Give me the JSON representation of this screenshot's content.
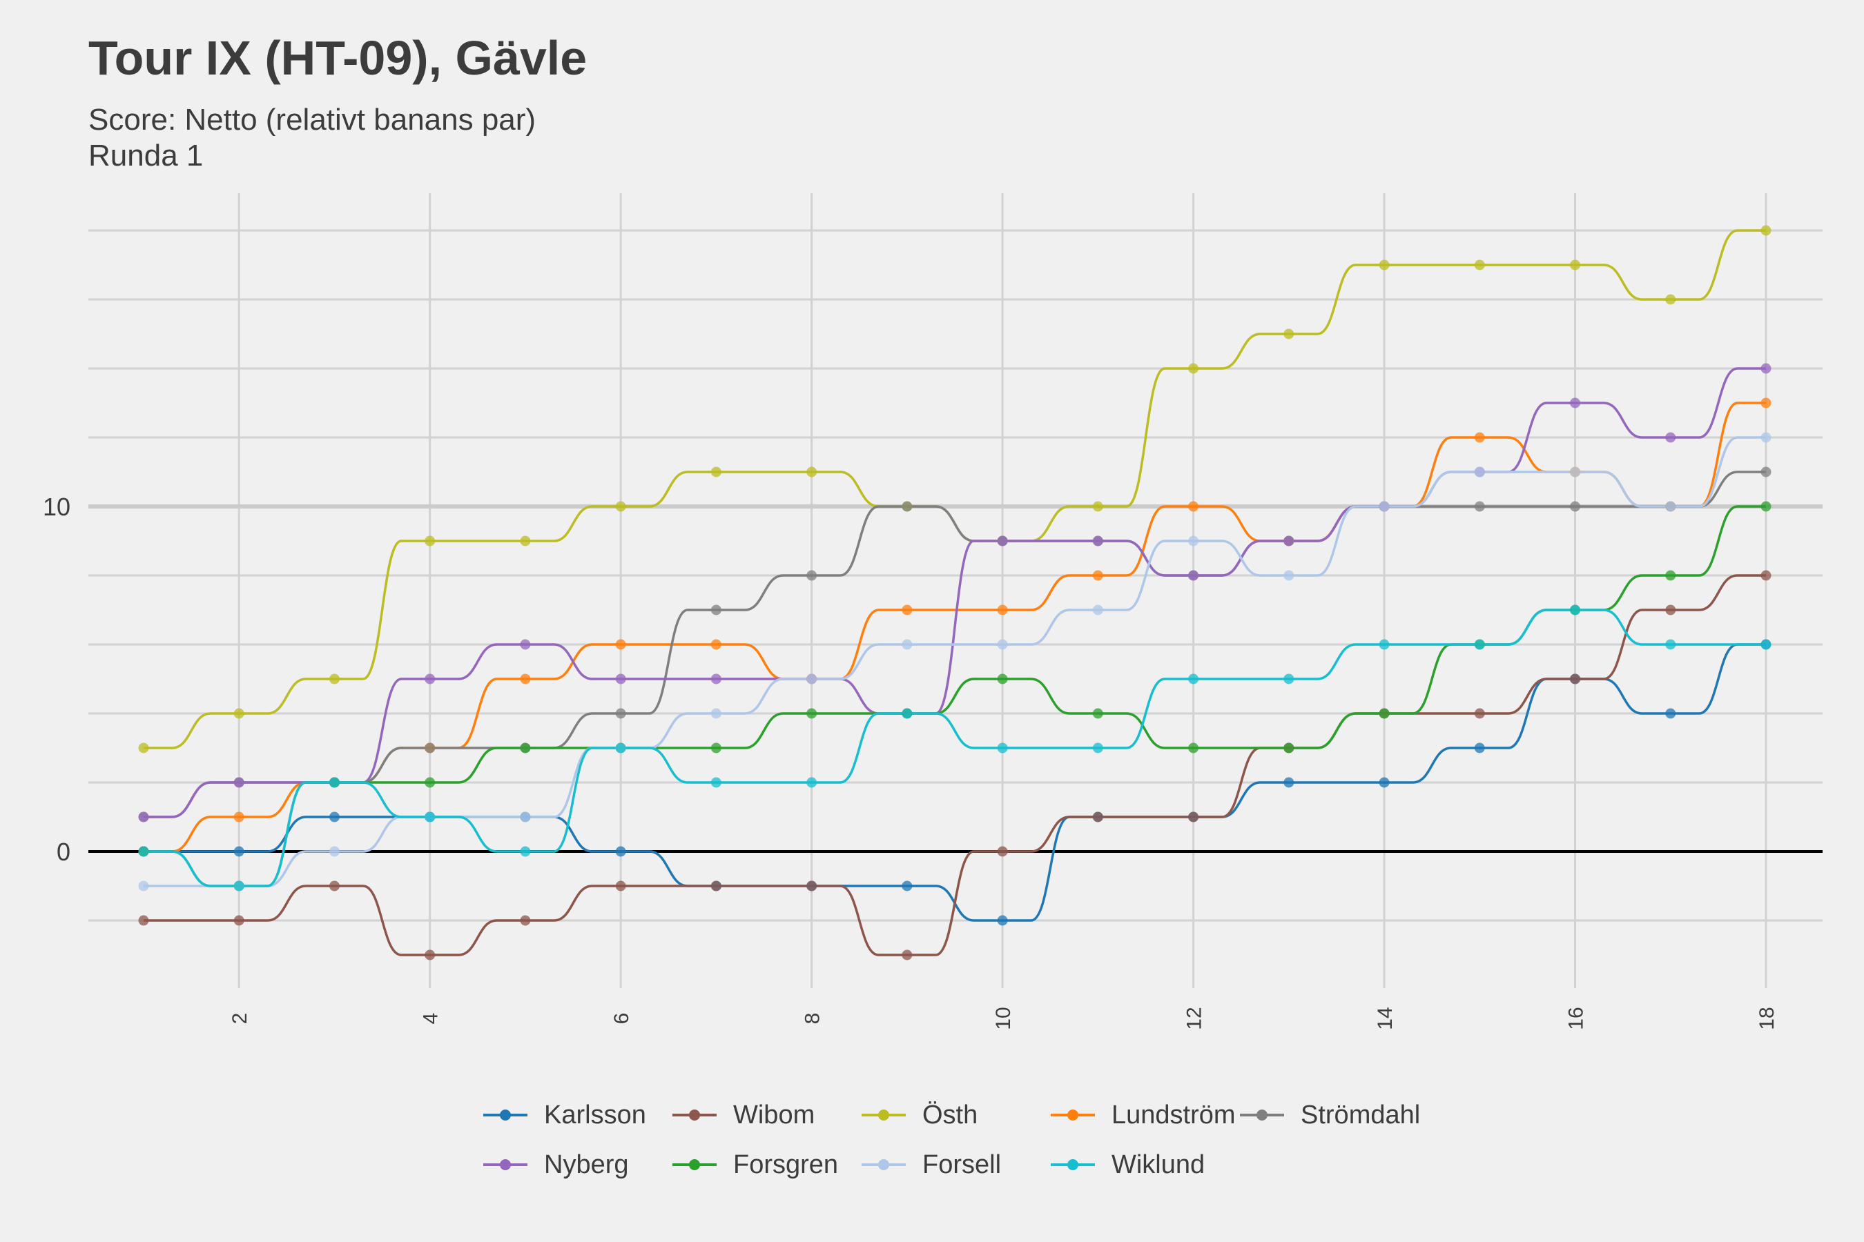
{
  "chart_data": {
    "type": "line",
    "title": "Tour IX (HT-09), Gävle",
    "subtitle": "Score: Netto (relativt banans par)\nRunda 1",
    "xlabel": "",
    "ylabel": "",
    "x": [
      1,
      2,
      3,
      4,
      5,
      6,
      7,
      8,
      9,
      10,
      11,
      12,
      13,
      14,
      15,
      16,
      17,
      18
    ],
    "xlim": [
      1,
      18
    ],
    "ylim": [
      -4,
      19
    ],
    "x_ticks": [
      "2",
      "4",
      "6",
      "8",
      "10",
      "12",
      "14",
      "16",
      "18"
    ],
    "y_ticks": [
      "0",
      "10"
    ],
    "grid": true,
    "legend_position": "bottom",
    "series": [
      {
        "name": "Karlsson",
        "color": "#1f77b4",
        "values": [
          0,
          0,
          1,
          1,
          1,
          0,
          -1,
          -1,
          -1,
          -2,
          1,
          1,
          2,
          2,
          3,
          5,
          4,
          6
        ]
      },
      {
        "name": "Wibom",
        "color": "#8c564b",
        "values": [
          -2,
          -2,
          -1,
          -3,
          -2,
          -1,
          -1,
          -1,
          -3,
          0,
          1,
          1,
          3,
          4,
          4,
          5,
          7,
          8
        ]
      },
      {
        "name": "Östh",
        "color": "#bcbd22",
        "values": [
          3,
          4,
          5,
          9,
          9,
          10,
          11,
          11,
          10,
          9,
          10,
          14,
          15,
          17,
          17,
          17,
          16,
          18
        ]
      },
      {
        "name": "Lundström",
        "color": "#ff7f0e",
        "values": [
          0,
          1,
          2,
          3,
          5,
          6,
          6,
          5,
          7,
          7,
          8,
          10,
          9,
          10,
          12,
          11,
          10,
          13
        ]
      },
      {
        "name": "Strömdahl",
        "color": "#7f7f7f",
        "values": [
          1,
          2,
          2,
          3,
          3,
          4,
          7,
          8,
          10,
          9,
          9,
          8,
          9,
          10,
          10,
          10,
          10,
          11
        ]
      },
      {
        "name": "Nyberg",
        "color": "#9467bd",
        "values": [
          1,
          2,
          2,
          5,
          6,
          5,
          5,
          5,
          4,
          9,
          9,
          8,
          9,
          10,
          11,
          13,
          12,
          14
        ]
      },
      {
        "name": "Forsgren",
        "color": "#2ca02c",
        "values": [
          0,
          -1,
          2,
          2,
          3,
          3,
          3,
          4,
          4,
          5,
          4,
          3,
          3,
          4,
          6,
          7,
          8,
          10
        ]
      },
      {
        "name": "Forsell",
        "color": "#aec7e8",
        "values": [
          -1,
          -1,
          0,
          1,
          1,
          3,
          4,
          5,
          6,
          6,
          7,
          9,
          8,
          10,
          11,
          11,
          10,
          12
        ]
      },
      {
        "name": "Wiklund",
        "color": "#17becf",
        "values": [
          0,
          -1,
          2,
          1,
          0,
          3,
          2,
          2,
          4,
          3,
          3,
          5,
          5,
          6,
          6,
          7,
          6,
          6
        ]
      }
    ]
  },
  "legend": {
    "rows": [
      [
        {
          "label": "Karlsson",
          "color": "#1f77b4"
        },
        {
          "label": "Wibom",
          "color": "#8c564b"
        },
        {
          "label": "Östh",
          "color": "#bcbd22"
        },
        {
          "label": "Lundström",
          "color": "#ff7f0e"
        },
        {
          "label": "Strömdahl",
          "color": "#7f7f7f"
        }
      ],
      [
        {
          "label": "Nyberg",
          "color": "#9467bd"
        },
        {
          "label": "Forsgren",
          "color": "#2ca02c"
        },
        {
          "label": "Forsell",
          "color": "#aec7e8"
        },
        {
          "label": "Wiklund",
          "color": "#17becf"
        }
      ]
    ]
  }
}
